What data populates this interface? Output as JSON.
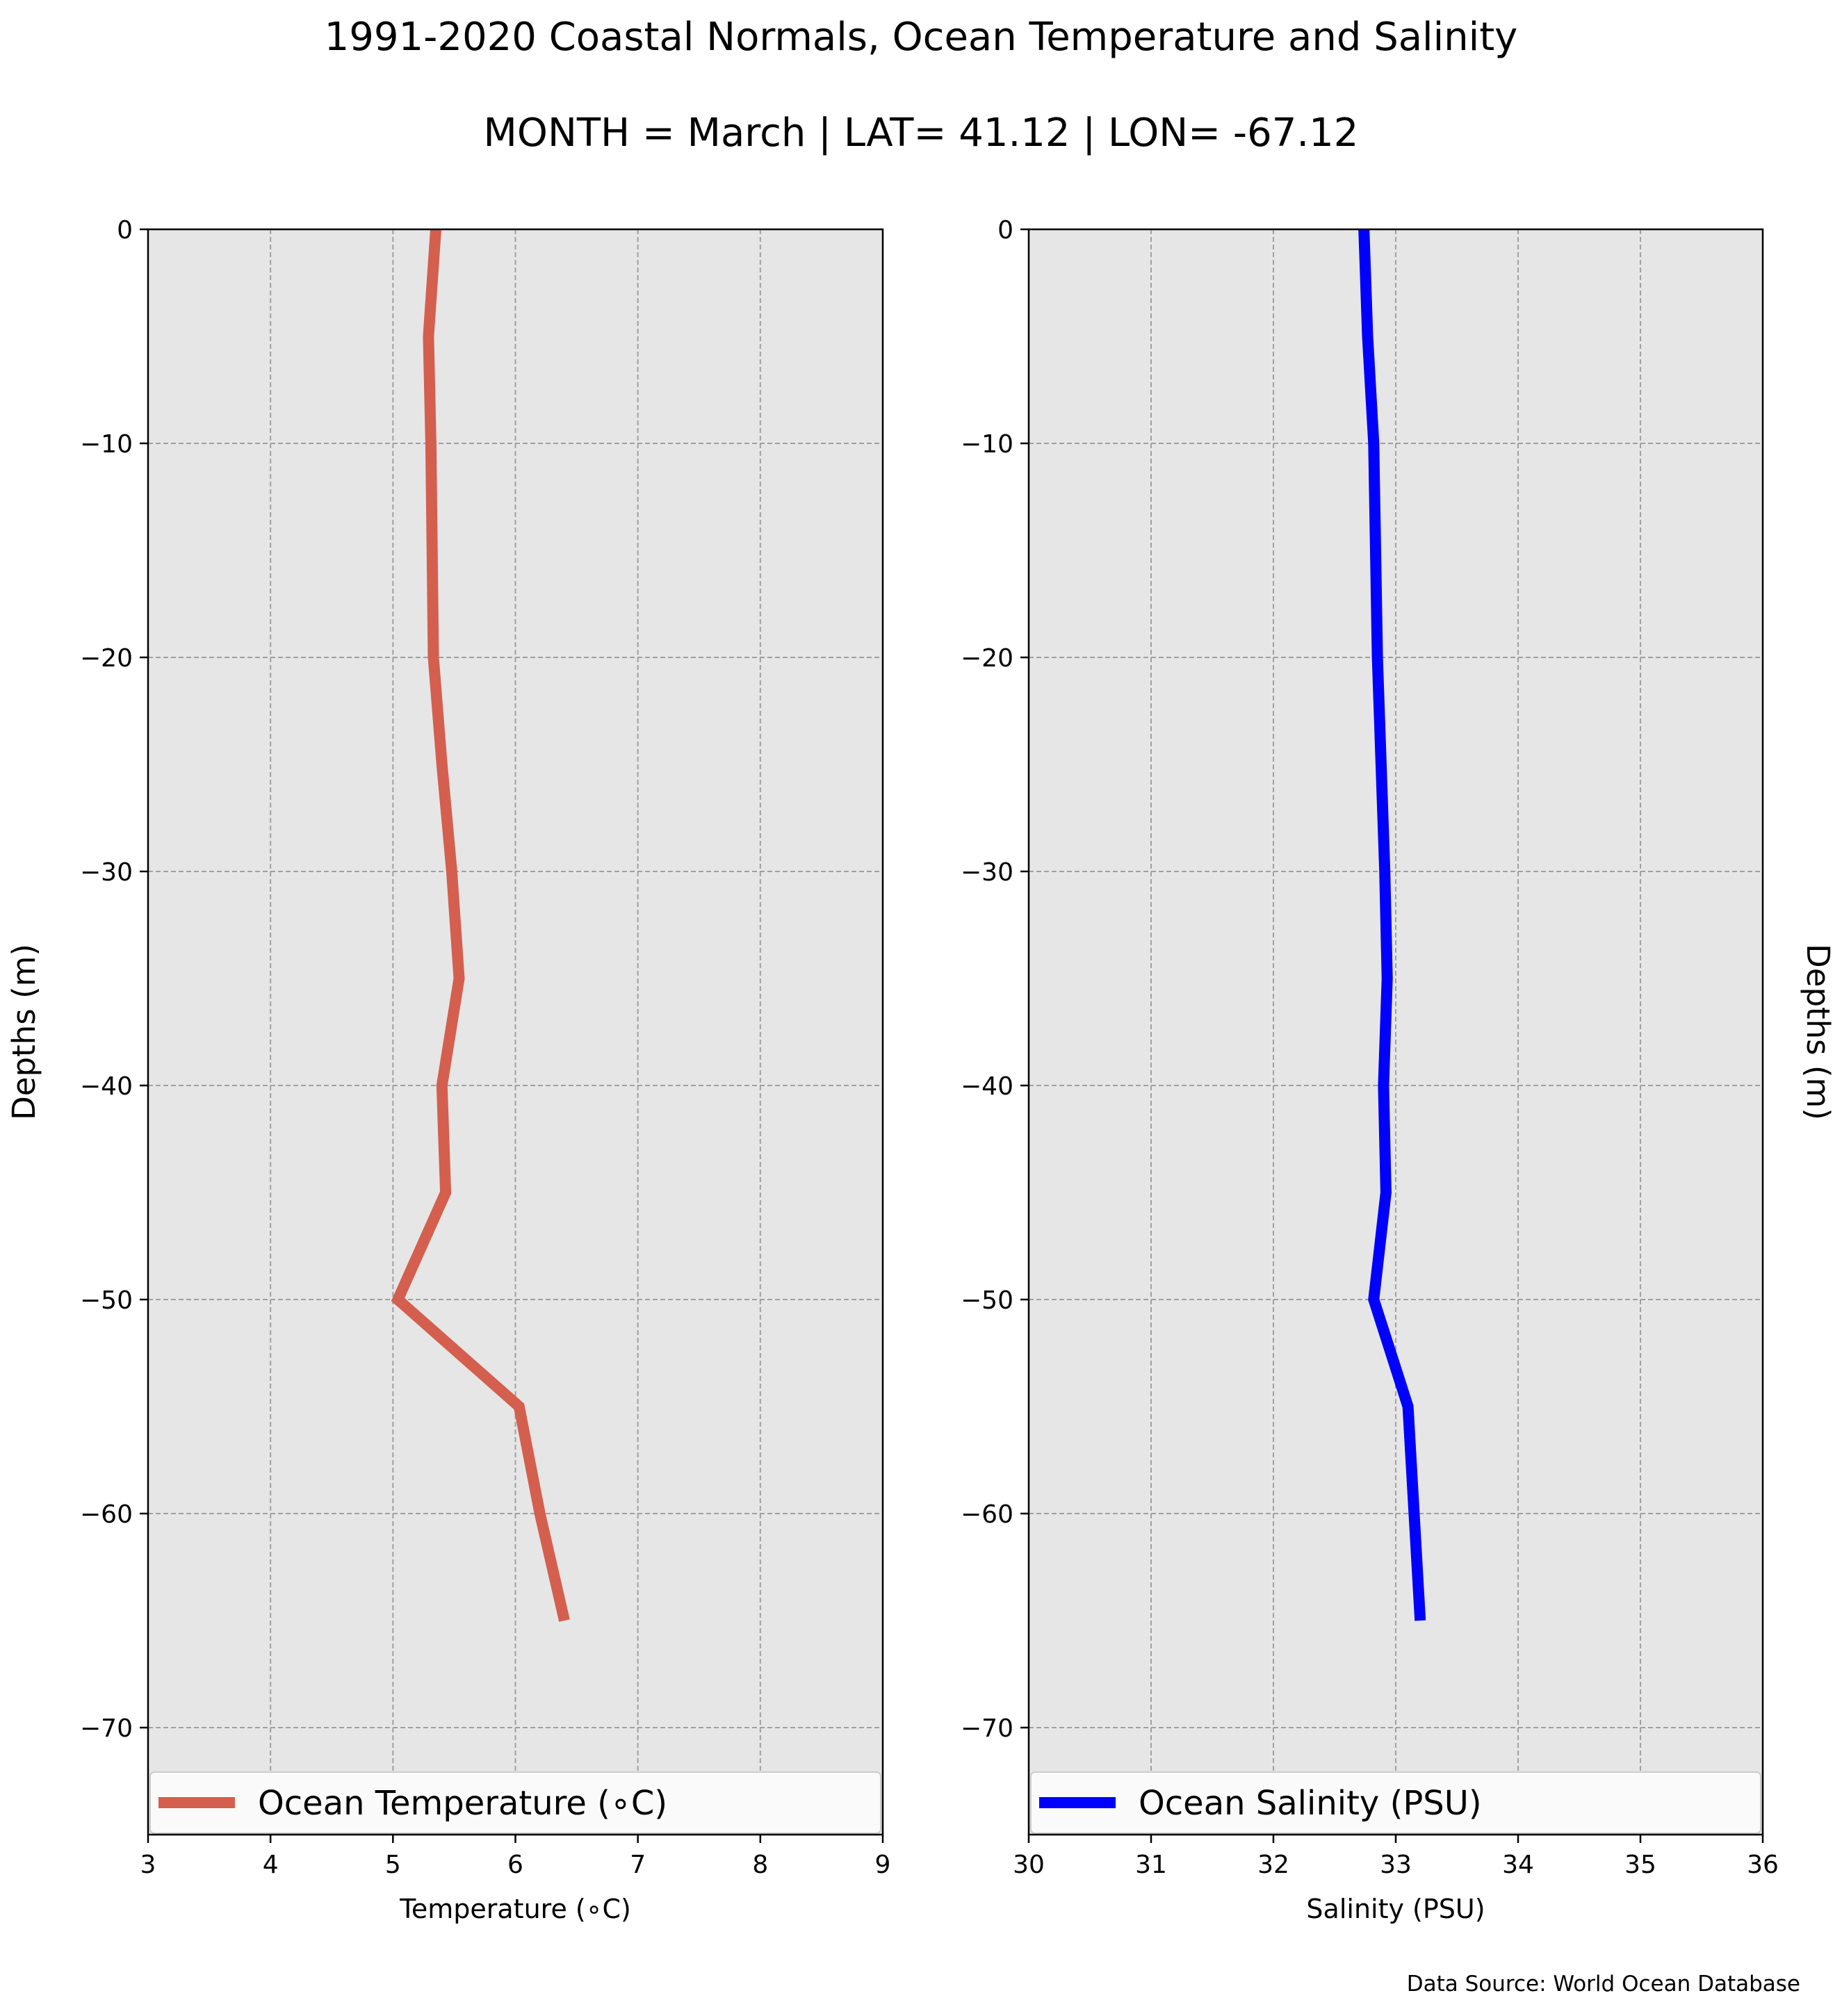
{
  "chart_data": [
    {
      "type": "line",
      "title": "1991-2020 Coastal Normals, Ocean Temperature and Salinity",
      "subtitle": "MONTH = March | LAT= 41.12 | LON= -67.12",
      "xlabel": "Temperature ($^\\circ$C)",
      "xlabel_display": "Temperature (∘C)",
      "ylabel": "Depths (m)",
      "xlim": [
        3,
        9
      ],
      "ylim": [
        -75,
        0
      ],
      "xticks": [
        3,
        4,
        5,
        6,
        7,
        8,
        9
      ],
      "yticks": [
        0,
        -10,
        -20,
        -30,
        -40,
        -50,
        -60,
        -70
      ],
      "ytick_labels": [
        "0",
        "−10",
        "−20",
        "−30",
        "−40",
        "−50",
        "−60",
        "−70"
      ],
      "grid": true,
      "legend_position": "lower-center",
      "series": [
        {
          "name": "Ocean Temperature (∘C)",
          "color": "#d45f4e",
          "x": [
            5.35,
            5.29,
            5.31,
            5.33,
            5.4,
            5.48,
            5.54,
            5.4,
            5.43,
            5.04,
            6.03,
            6.2,
            6.4
          ],
          "y": [
            0,
            -5,
            -10,
            -20,
            -25,
            -30,
            -35,
            -40,
            -45,
            -50,
            -55,
            -60,
            -65
          ]
        }
      ]
    },
    {
      "type": "line",
      "xlabel": "Salinity (PSU)",
      "ylabel": "Depths (m)",
      "xlim": [
        30,
        36
      ],
      "ylim": [
        -75,
        0
      ],
      "xticks": [
        30,
        31,
        32,
        33,
        34,
        35,
        36
      ],
      "yticks": [
        0,
        -10,
        -20,
        -30,
        -40,
        -50,
        -60,
        -70
      ],
      "ytick_labels": [
        "0",
        "−10",
        "−20",
        "−30",
        "−40",
        "−50",
        "−60",
        "−70"
      ],
      "grid": true,
      "legend_position": "lower-center",
      "series": [
        {
          "name": "Ocean Salinity (PSU)",
          "color": "#0000ff",
          "x": [
            32.74,
            32.77,
            32.82,
            32.85,
            32.88,
            32.91,
            32.93,
            32.9,
            32.92,
            32.82,
            33.1,
            33.15,
            33.2
          ],
          "y": [
            0,
            -5,
            -10,
            -20,
            -25,
            -30,
            -35,
            -40,
            -45,
            -50,
            -55,
            -60,
            -65
          ]
        }
      ]
    }
  ],
  "source_note": "Data Source: World Ocean Database"
}
